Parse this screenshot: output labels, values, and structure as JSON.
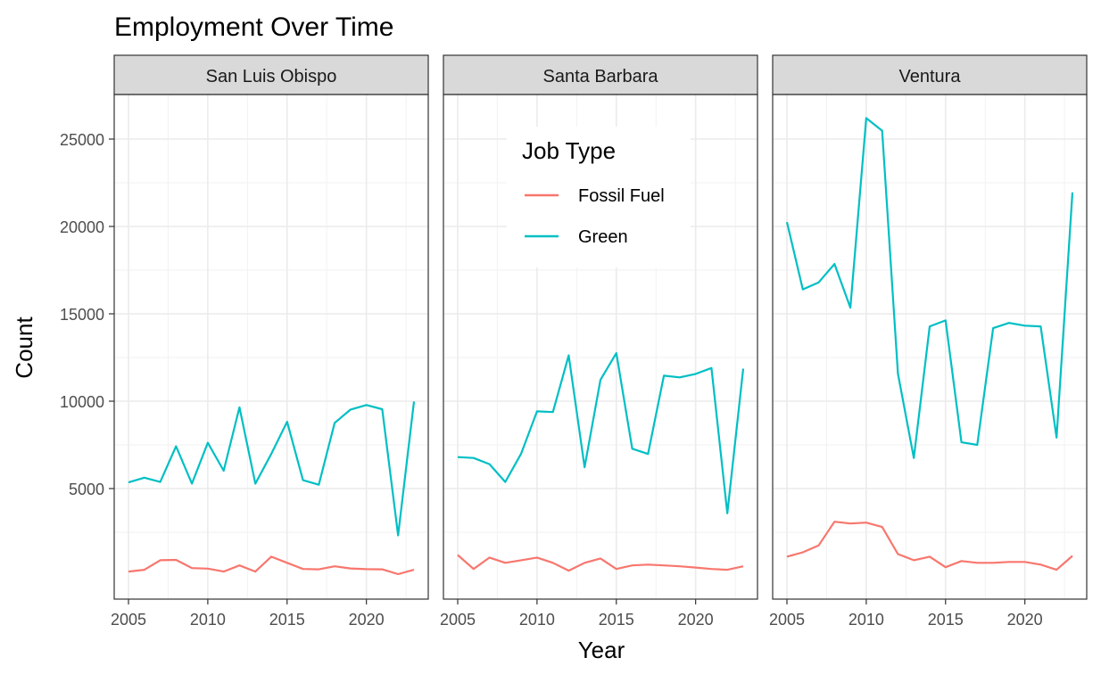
{
  "chart_data": {
    "type": "line",
    "title": "Employment Over Time",
    "xlabel": "Year",
    "ylabel": "Count",
    "xlim": [
      2005,
      2023
    ],
    "ylim": [
      0,
      26200
    ],
    "x_ticks": [
      2005,
      2010,
      2015,
      2020
    ],
    "y_ticks": [
      5000,
      10000,
      15000,
      20000,
      25000
    ],
    "grid": true,
    "legend": {
      "title": "Job Type",
      "position": "inside-top-center",
      "entries": [
        "Fossil Fuel",
        "Green"
      ]
    },
    "colors": {
      "Fossil Fuel": "#F8766D",
      "Green": "#00BFC4"
    },
    "x": [
      2005,
      2006,
      2007,
      2008,
      2009,
      2010,
      2011,
      2012,
      2013,
      2014,
      2015,
      2016,
      2017,
      2018,
      2019,
      2020,
      2021,
      2022,
      2023
    ],
    "panels": [
      {
        "name": "San Luis Obispo",
        "series": [
          {
            "name": "Fossil Fuel",
            "values": [
              250,
              350,
              900,
              920,
              450,
              420,
              250,
              600,
              250,
              1100,
              750,
              400,
              380,
              550,
              430,
              390,
              380,
              100,
              350
            ]
          },
          {
            "name": "Green",
            "values": [
              5350,
              5620,
              5380,
              7420,
              5280,
              7620,
              6020,
              9650,
              5280,
              6980,
              8820,
              5480,
              5220,
              8760,
              9520,
              9780,
              9540,
              2320,
              9980
            ]
          }
        ]
      },
      {
        "name": "Santa Barbara",
        "series": [
          {
            "name": "Fossil Fuel",
            "values": [
              1200,
              400,
              1050,
              750,
              900,
              1050,
              750,
              300,
              750,
              1000,
              400,
              600,
              650,
              600,
              550,
              480,
              400,
              350,
              550
            ]
          },
          {
            "name": "Green",
            "values": [
              6800,
              6750,
              6400,
              5380,
              7000,
              9420,
              9380,
              12620,
              6220,
              11220,
              12750,
              7280,
              6980,
              11460,
              11360,
              11560,
              11900,
              3580,
              11860
            ]
          }
        ]
      },
      {
        "name": "Ventura",
        "series": [
          {
            "name": "Fossil Fuel",
            "values": [
              1100,
              1350,
              1750,
              3100,
              3000,
              3050,
              2800,
              1250,
              900,
              1100,
              500,
              850,
              750,
              750,
              800,
              800,
              650,
              350,
              1150
            ]
          },
          {
            "name": "Green",
            "values": [
              20250,
              16400,
              16800,
              17850,
              15350,
              26200,
              25480,
              11580,
              6750,
              14280,
              14620,
              7650,
              7500,
              14180,
              14480,
              14320,
              14280,
              7920,
              21950
            ]
          }
        ]
      }
    ]
  }
}
